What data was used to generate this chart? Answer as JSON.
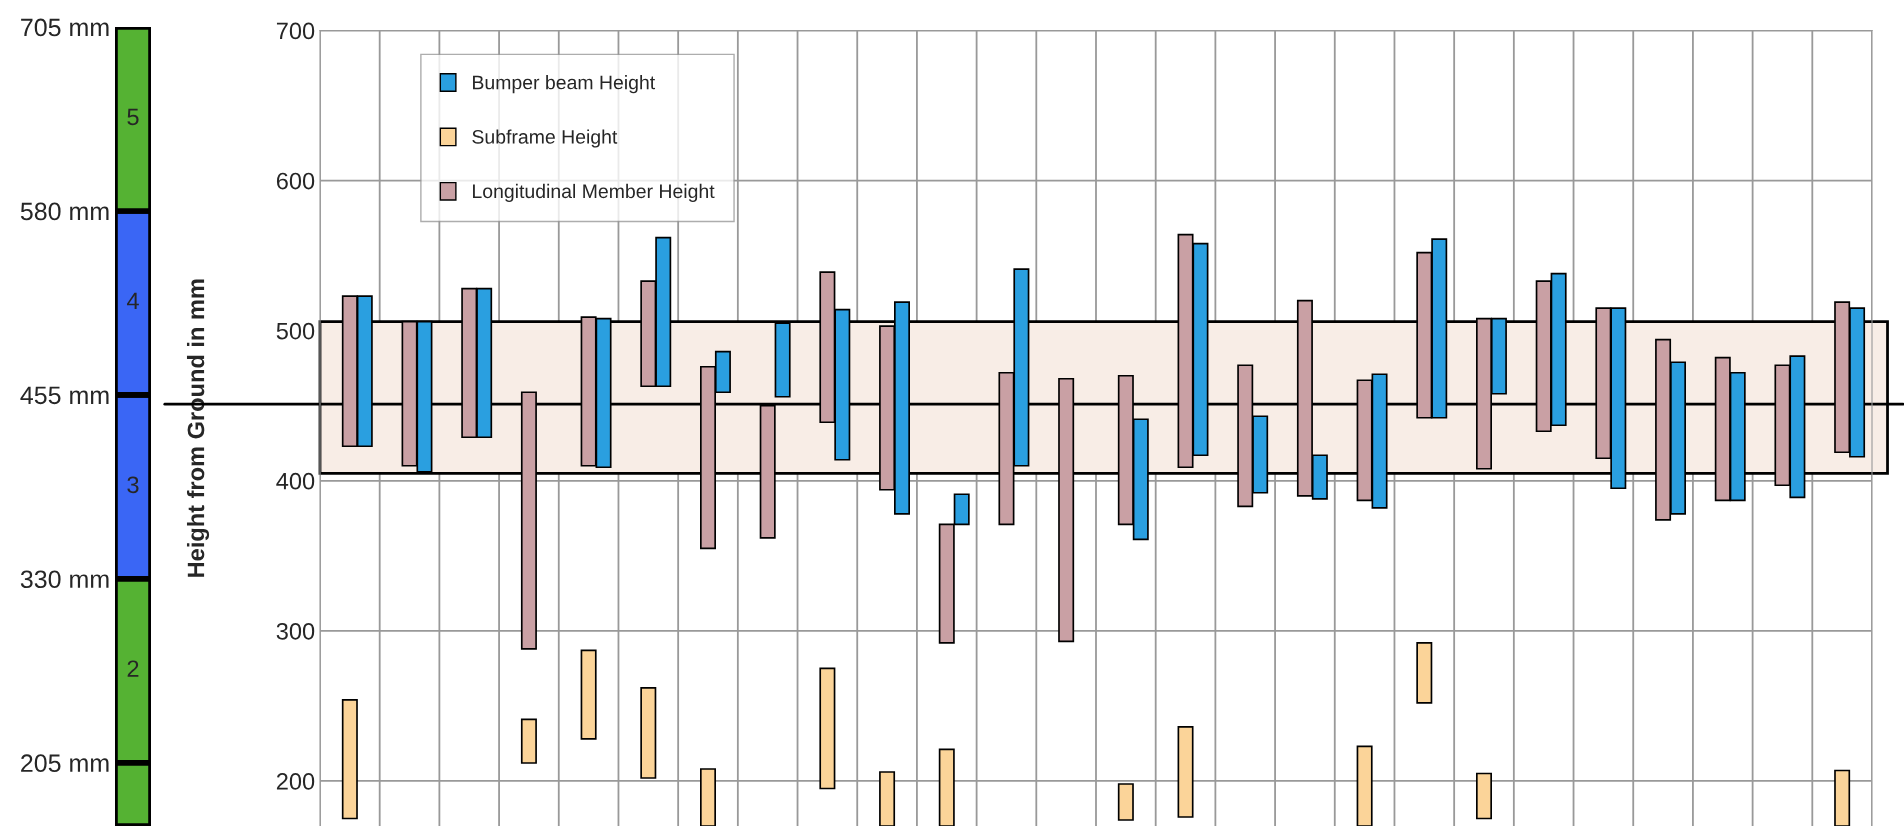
{
  "chart_data": [
    {
      "type": "bar",
      "categories": [
        null
      ],
      "ylim": [
        162,
        705
      ],
      "annotations": [
        "2",
        "3",
        "4",
        "5"
      ],
      "yticks": [
        {
          "value": 705,
          "label": "705 mm"
        },
        {
          "value": 580,
          "label": "580 mm"
        },
        {
          "value": 455,
          "label": "455 mm"
        },
        {
          "value": 330,
          "label": "330 mm"
        },
        {
          "value": 205,
          "label": "205 mm"
        }
      ],
      "tick_labels": "y",
      "grid": false,
      "legend": false,
      "series": [
        {
          "color": "#55b233",
          "base": [
            162
          ],
          "values": [
            43
          ]
        },
        {
          "color": "#55b233",
          "base": [
            205
          ],
          "values": [
            125
          ]
        },
        {
          "color": "#3a66f5",
          "base": [
            330
          ],
          "values": [
            125
          ]
        },
        {
          "color": "#3a66f5",
          "base": [
            455
          ],
          "values": [
            125
          ]
        },
        {
          "color": "#55b233",
          "base": [
            580
          ],
          "values": [
            125
          ]
        }
      ]
    },
    {
      "type": "bar",
      "ylabel": "Height from Ground in mm",
      "categories": [
        null,
        null,
        null,
        null,
        null,
        null,
        null,
        null,
        null,
        null,
        null,
        null,
        null,
        null,
        null,
        null,
        null,
        null,
        null,
        null,
        null,
        null,
        null,
        null,
        null,
        null
      ],
      "ylim": [
        170,
        700
      ],
      "yticks": [
        200,
        300,
        400,
        500,
        600,
        700
      ],
      "tick_labels": "y",
      "grid": true,
      "legend": "top left",
      "bands": [
        {
          "axis": "y",
          "from": 405,
          "to": 506,
          "color": "#f8ede6"
        }
      ],
      "ref_lines": [
        {
          "axis": "y",
          "value": 451,
          "color": "#000000"
        }
      ],
      "series": [
        {
          "name": "Bumper beam Height",
          "color": "#2a9fe0",
          "base": [
            423,
            406,
            429,
            null,
            409,
            463,
            459,
            456,
            414,
            378,
            371,
            410,
            null,
            361,
            417,
            392,
            388,
            382,
            442,
            458,
            437,
            395,
            378,
            387,
            389,
            416
          ],
          "values": [
            100,
            100,
            99,
            null,
            99,
            99,
            27,
            49,
            100,
            141,
            20,
            131,
            null,
            80,
            141,
            51,
            29,
            89,
            119,
            50,
            101,
            120,
            101,
            85,
            94,
            99
          ]
        },
        {
          "name": "Subframe Height",
          "color": "#fbd499",
          "base": [
            175,
            null,
            null,
            212,
            228,
            202,
            170,
            null,
            195,
            170,
            170,
            null,
            null,
            174,
            176,
            null,
            null,
            170,
            252,
            175,
            null,
            null,
            null,
            null,
            null,
            170
          ],
          "values": [
            79,
            null,
            null,
            29,
            59,
            60,
            38,
            null,
            80,
            36,
            51,
            null,
            null,
            24,
            60,
            null,
            null,
            53,
            40,
            30,
            null,
            null,
            null,
            null,
            null,
            37
          ]
        },
        {
          "name": "Longitudinal Member Height",
          "color": "#c9a0a4",
          "base": [
            423,
            410,
            429,
            288,
            410,
            463,
            355,
            362,
            439,
            394,
            292,
            371,
            293,
            371,
            409,
            383,
            390,
            387,
            442,
            408,
            433,
            415,
            374,
            387,
            397,
            419
          ],
          "values": [
            100,
            96,
            99,
            171,
            99,
            70,
            121,
            88,
            100,
            109,
            79,
            101,
            175,
            99,
            155,
            94,
            130,
            80,
            110,
            100,
            100,
            100,
            120,
            95,
            80,
            100
          ]
        }
      ]
    }
  ]
}
